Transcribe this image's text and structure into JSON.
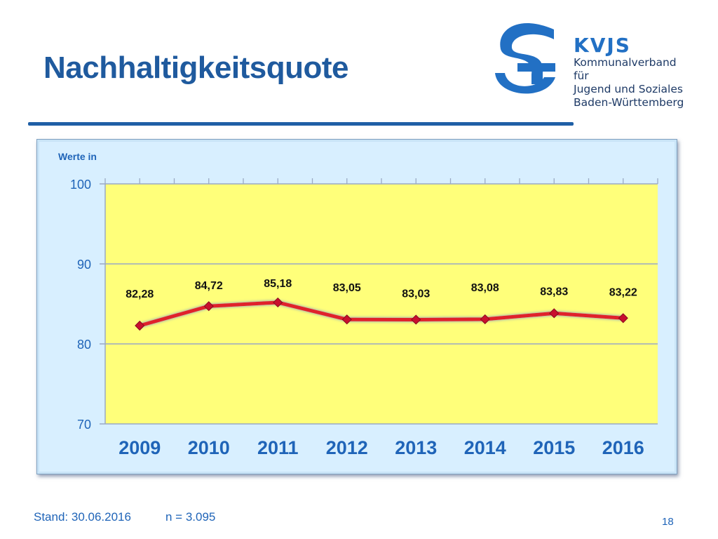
{
  "header": {
    "title": "Nachhaltigkeitsquote"
  },
  "logo": {
    "abbr": "KVJS",
    "lines": [
      "Kommunalverband für",
      "Jugend und Soziales",
      "Baden-Württemberg"
    ],
    "icon": "kvjs-logo-icon"
  },
  "panel_note": "Werte in",
  "footer": {
    "stand": "Stand: 30.06.2016",
    "n": "n = 3.095",
    "page": "18"
  },
  "colors": {
    "title": "#1f5a9e",
    "plot_bg": "#ffff7a",
    "panel_bg": "#d8efff",
    "line": "#e0202a",
    "marker": "#c8102e",
    "axis_text": "#1f64b8"
  },
  "chart_data": {
    "type": "line",
    "categories": [
      "2009",
      "2010",
      "2011",
      "2012",
      "2013",
      "2014",
      "2015",
      "2016"
    ],
    "series": [
      {
        "values": [
          82.28,
          84.72,
          85.18,
          83.05,
          83.03,
          83.08,
          83.83,
          83.22
        ]
      }
    ],
    "data_labels": [
      "82,28",
      "84,72",
      "85,18",
      "83,05",
      "83,03",
      "83,08",
      "83,83",
      "83,22"
    ],
    "yticks": [
      70,
      80,
      90,
      100
    ],
    "ytick_labels": [
      "70",
      "80",
      "90",
      "100"
    ],
    "ylim": [
      70,
      100
    ],
    "grid": true,
    "legend": "none"
  }
}
